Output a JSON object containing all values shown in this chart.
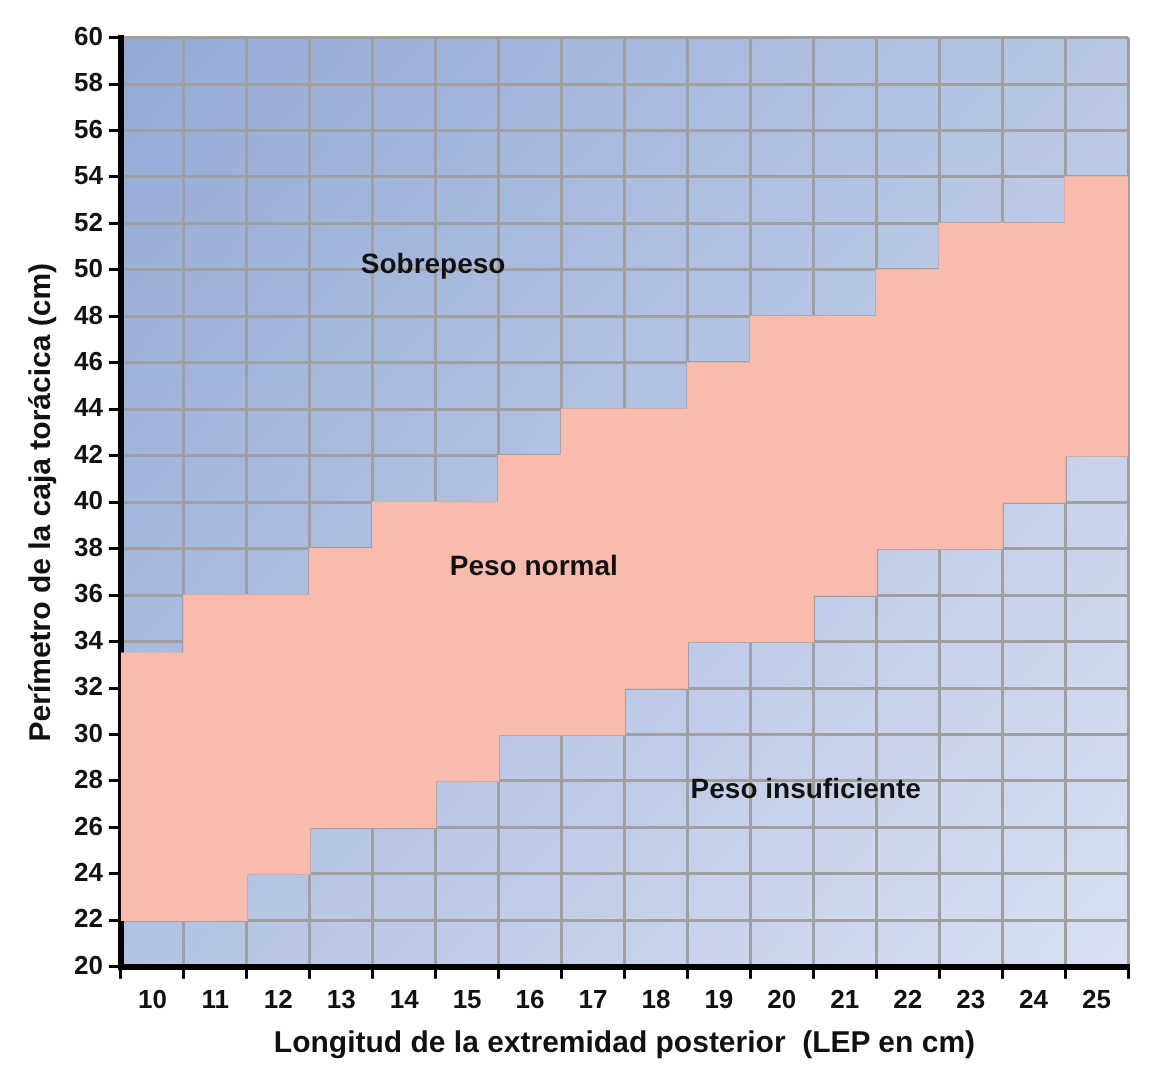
{
  "chart_data": {
    "type": "bar",
    "xlabel": "Longitud de la extremidad posterior  (LEP en cm)",
    "ylabel": "Perímetro de la caja torácica (cm)",
    "categories": [
      "10",
      "11",
      "12",
      "13",
      "14",
      "15",
      "16",
      "17",
      "18",
      "19",
      "20",
      "21",
      "22",
      "23",
      "24",
      "25"
    ],
    "base": [
      22,
      22,
      24,
      26,
      26,
      28,
      30,
      30,
      32,
      34,
      34,
      36,
      38,
      38,
      40,
      42
    ],
    "values": [
      11.5,
      14,
      12,
      12,
      14,
      12,
      12,
      14,
      12,
      12,
      14,
      12,
      12,
      14,
      12,
      12
    ],
    "color": "#f8bbad",
    "ylim": [
      20,
      60
    ],
    "yticks": [
      20,
      22,
      24,
      26,
      28,
      30,
      32,
      34,
      36,
      38,
      40,
      42,
      44,
      46,
      48,
      50,
      52,
      54,
      56,
      58,
      60
    ],
    "grid": true,
    "annotations": [
      "Sobrepeso",
      "Peso normal",
      "Peso insuficiente"
    ]
  }
}
